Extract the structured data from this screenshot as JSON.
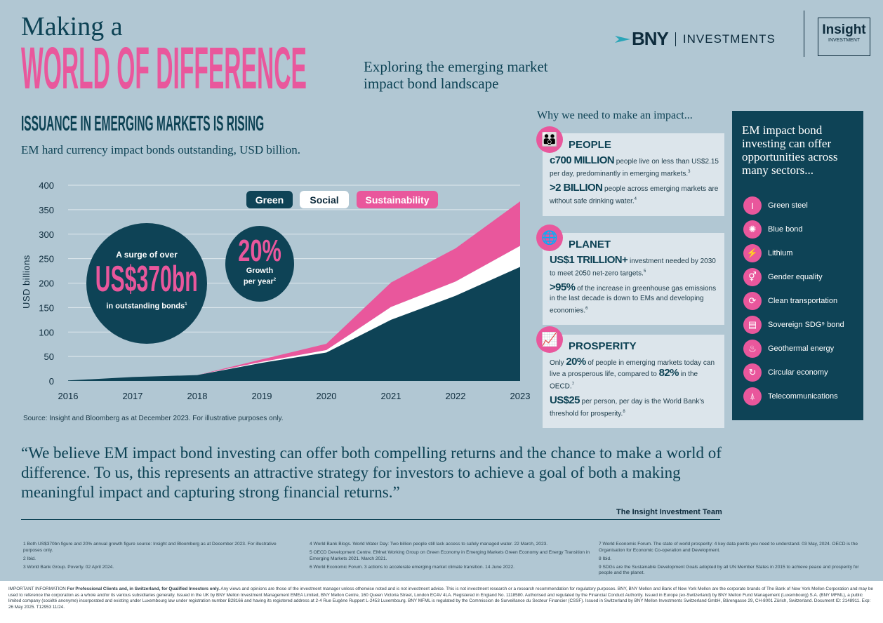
{
  "header": {
    "kicker": "Making a",
    "title": "WORLD OF DIFFERENCE",
    "subtitle_line1": "Exploring the emerging market",
    "subtitle_line2": "impact bond landscape",
    "logos": {
      "bny": "BNY",
      "bny_suffix": "INVESTMENTS",
      "insight": "Insight",
      "insight_sub": "INVESTMENT"
    }
  },
  "chart_section": {
    "heading": "ISSUANCE IN EMERGING MARKETS IS RISING",
    "subheading": "EM hard currency impact bonds outstanding, USD billion.",
    "source": "Source: Insight and Bloomberg as at December 2023. For illustrative purposes only.",
    "callout_surge": {
      "top": "A surge of over",
      "value": "US$370bn",
      "bottom": "in outstanding bonds",
      "sup": "1"
    },
    "callout_growth": {
      "value": "20%",
      "line1": "Growth",
      "line2": "per year",
      "sup": "2"
    }
  },
  "chart_data": {
    "type": "area",
    "stacked": true,
    "title": "",
    "xlabel": "",
    "ylabel": "USD billions",
    "categories": [
      "2016",
      "2017",
      "2018",
      "2019",
      "2020",
      "2021",
      "2022",
      "2023"
    ],
    "yticks": [
      "0",
      "50",
      "100",
      "150",
      "200",
      "250",
      "300",
      "350",
      "400"
    ],
    "ylim": [
      0,
      400
    ],
    "grid": "horizontal",
    "legend": "top",
    "series": [
      {
        "name": "Green",
        "color": "#0e4356",
        "values": [
          1,
          8,
          12,
          37,
          58,
          125,
          174,
          233
        ]
      },
      {
        "name": "Social",
        "color": "#ffffff",
        "values": [
          0,
          0,
          0,
          2,
          5,
          26,
          29,
          43
        ]
      },
      {
        "name": "Sustainability",
        "color": "#e9579c",
        "values": [
          0,
          0,
          0,
          5,
          13,
          50,
          68,
          91
        ]
      }
    ]
  },
  "impact": {
    "heading": "Why we need to make an impact...",
    "people": {
      "title": "PEOPLE",
      "icon": "people-icon",
      "s1_big": "c700 MILLION",
      "s1_text": "people live on less than US$2.15 per day, predominantly in emerging markets.",
      "s1_sup": "3",
      "s2_big": ">2 BILLION",
      "s2_text": "people across emerging markets are without safe drinking water.",
      "s2_sup": "4"
    },
    "planet": {
      "title": "PLANET",
      "icon": "globe-icon",
      "s1_big": "US$1 TRILLION+",
      "s1_text": "investment needed by 2030 to meet 2050 net-zero targets.",
      "s1_sup": "5",
      "s2_big": ">95%",
      "s2_text": "of the increase in greenhouse gas emissions in the last decade is down to EMs and developing economies.",
      "s2_sup": "6"
    },
    "prosperity": {
      "title": "PROSPERITY",
      "icon": "growth-chart-icon",
      "s1_pre": "Only",
      "s1_big": "20%",
      "s1_mid": "of people in emerging markets today can live a prosperous life, compared to",
      "s1_big2": "82%",
      "s1_post": "in the OECD.",
      "s1_sup": "7",
      "s2_big": "US$25",
      "s2_text": "per person, per day is the World Bank's threshold for prosperity.",
      "s2_sup": "8"
    }
  },
  "sectors": {
    "heading": "EM impact bond investing can offer opportunities across many sectors...",
    "items": [
      {
        "label": "Green steel",
        "icon": "steel-beam-icon"
      },
      {
        "label": "Blue bond",
        "icon": "water-badge-icon"
      },
      {
        "label": "Lithium",
        "icon": "battery-icon"
      },
      {
        "label": "Gender equality",
        "icon": "gender-icon"
      },
      {
        "label": "Clean transportation",
        "icon": "vehicle-icon"
      },
      {
        "label": "Sovereign SDG⁹ bond",
        "icon": "document-icon"
      },
      {
        "label": "Geothermal energy",
        "icon": "geothermal-icon"
      },
      {
        "label": "Circular economy",
        "icon": "recycle-icon"
      },
      {
        "label": "Telecommunications",
        "icon": "antenna-icon"
      }
    ]
  },
  "quote": {
    "text": "“We believe EM impact bond investing can offer both compelling returns and the chance to make a world of difference. To us, this represents an attractive strategy for investors to achieve a goal of both a making  meaningful impact and capturing strong financial returns.”",
    "attribution": "The Insight Investment Team"
  },
  "footnotes": [
    "1 Both US$370bn figure and 20% annual growth figure source: Insight and Bloomberg as at December 2023. For illustrative purposes only.",
    "2 Ibid.",
    "3 World Bank Group. Poverty. 02 April 2024.",
    "4 World Bank Blogs. World Water Day: Two billion people still lack access to safely managed water. 22 March, 2023.",
    "5 OECD Development Centre. EMnet Working Group on Green Economy in Emerging Markets Green Economy and Energy Transition in Emerging Markets 2021. March 2021.",
    "6 World Economic Forum. 3 actions to accelerate emerging market climate transition. 14 June 2022.",
    "7 World Economic Forum. The state of world prosperity: 4 key data points you need to understand. 03 May, 2024. OECD is the Organisation for Economic Co-operation and Development.",
    "8 Ibid.",
    "9 SDGs are the Sustainable Development Goals  adopted by all UN Member States in 2015 to achieve peace and prosperity for people and the planet."
  ],
  "important": {
    "label": "IMPORTANT INFORMATION",
    "bold": "For Professional Clients and, in Switzerland, for Qualified Investors only.",
    "text": "Any views and opinions are those of the investment manager unless otherwise noted and is not investment advice. This is not investment research or a research recommendation for regulatory purposes. BNY, BNY Mellon and Bank of New York Mellon are the corporate brands of The Bank of New York Mellon Corporation and may be used to reference the corporation as a whole and/or its various subsidiaries generally. Issued in the UK by BNY Mellon Investment Management EMEA Limited, BNY Mellon Centre, 160 Queen Victoria Street, London EC4V 4LA. Registered in England No. 1118580. Authorised and regulated by the Financial Conduct Authority. Issued in Europe (ex-Switzerland) by BNY Mellon Fund Management (Luxembourg) S.A. (BNY MFML), a public limited company (société anonyme) incorporated and existing under Luxembourg law under registration number B28166 and having its registered address at 2-4 Rue Eugène Ruppert L-2453 Luxembourg. BNY MFML is regulated by the Commission de Surveillance du Secteur Financier (CSSF). Issued in Switzerland by BNY Mellon Investments Switzerland GmbH, Bärengasse 29, CH-8001 Zürich, Switzerland. Document ID: 2148911. Exp: 26 May 2025. T12953 11/24."
  },
  "colors": {
    "background": "#b1c7d3",
    "navy": "#0e4356",
    "pink": "#e9579c",
    "card": "#dce5eb"
  }
}
